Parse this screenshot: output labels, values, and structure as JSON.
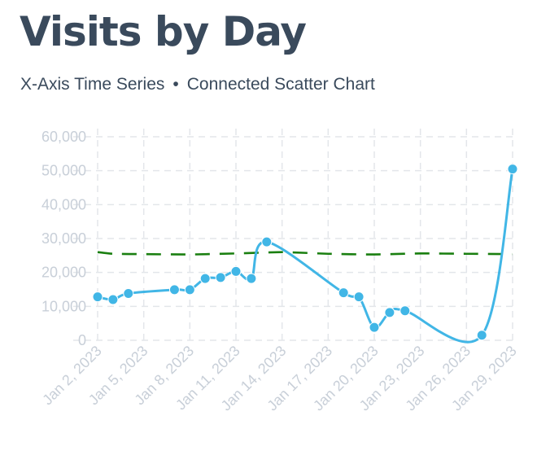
{
  "header": {
    "title": "Visits by Day",
    "subtitle_left": "X-Axis Time Series",
    "subtitle_separator": "•",
    "subtitle_right": "Connected Scatter Chart"
  },
  "chart_data": {
    "type": "scatter",
    "connected": true,
    "title": "Visits by Day",
    "subtitle": "X-Axis Time Series • Connected Scatter Chart",
    "xlabel": "",
    "ylabel": "",
    "x_type": "date",
    "xlim": [
      "2023-01-02",
      "2023-01-29"
    ],
    "ylim": [
      0,
      60000
    ],
    "grid": true,
    "legend": "none",
    "yticks": [
      0,
      10000,
      20000,
      30000,
      40000,
      50000,
      60000
    ],
    "ytick_labels": [
      "0",
      "10,000",
      "20,000",
      "30,000",
      "40,000",
      "50,000",
      "60,000"
    ],
    "xticks": [
      "2023-01-02",
      "2023-01-05",
      "2023-01-08",
      "2023-01-11",
      "2023-01-14",
      "2023-01-17",
      "2023-01-20",
      "2023-01-23",
      "2023-01-26",
      "2023-01-29"
    ],
    "xtick_labels": [
      "Jan 2, 2023",
      "Jan 5, 2023",
      "Jan 8, 2023",
      "Jan 11, 2023",
      "Jan 14, 2023",
      "Jan 17, 2023",
      "Jan 20, 2023",
      "Jan 23, 2023",
      "Jan 26, 2023",
      "Jan 29, 2023"
    ],
    "series": [
      {
        "color": "#41b6e6",
        "points": [
          {
            "x": "2023-01-02",
            "y": 12800
          },
          {
            "x": "2023-01-03",
            "y": 12000
          },
          {
            "x": "2023-01-04",
            "y": 13800
          },
          {
            "x": "2023-01-07",
            "y": 14900
          },
          {
            "x": "2023-01-08",
            "y": 14900
          },
          {
            "x": "2023-01-09",
            "y": 18200
          },
          {
            "x": "2023-01-10",
            "y": 18500
          },
          {
            "x": "2023-01-11",
            "y": 20300
          },
          {
            "x": "2023-01-12",
            "y": 18200
          },
          {
            "x": "2023-01-13",
            "y": 29000
          },
          {
            "x": "2023-01-18",
            "y": 14000
          },
          {
            "x": "2023-01-19",
            "y": 12800
          },
          {
            "x": "2023-01-20",
            "y": 3800
          },
          {
            "x": "2023-01-21",
            "y": 8200
          },
          {
            "x": "2023-01-22",
            "y": 8700
          },
          {
            "x": "2023-01-27",
            "y": 1500
          },
          {
            "x": "2023-01-29",
            "y": 50500
          }
        ]
      }
    ],
    "reference_line": {
      "color": "#1a7f10",
      "style": "dashed",
      "points": [
        {
          "x": "2023-01-02",
          "y": 26000
        },
        {
          "x": "2023-01-03",
          "y": 25500
        },
        {
          "x": "2023-01-05",
          "y": 25400
        },
        {
          "x": "2023-01-08",
          "y": 25300
        },
        {
          "x": "2023-01-11",
          "y": 25600
        },
        {
          "x": "2023-01-14",
          "y": 26000
        },
        {
          "x": "2023-01-17",
          "y": 25500
        },
        {
          "x": "2023-01-20",
          "y": 25300
        },
        {
          "x": "2023-01-23",
          "y": 25600
        },
        {
          "x": "2023-01-26",
          "y": 25500
        },
        {
          "x": "2023-01-29",
          "y": 25400
        }
      ]
    }
  }
}
